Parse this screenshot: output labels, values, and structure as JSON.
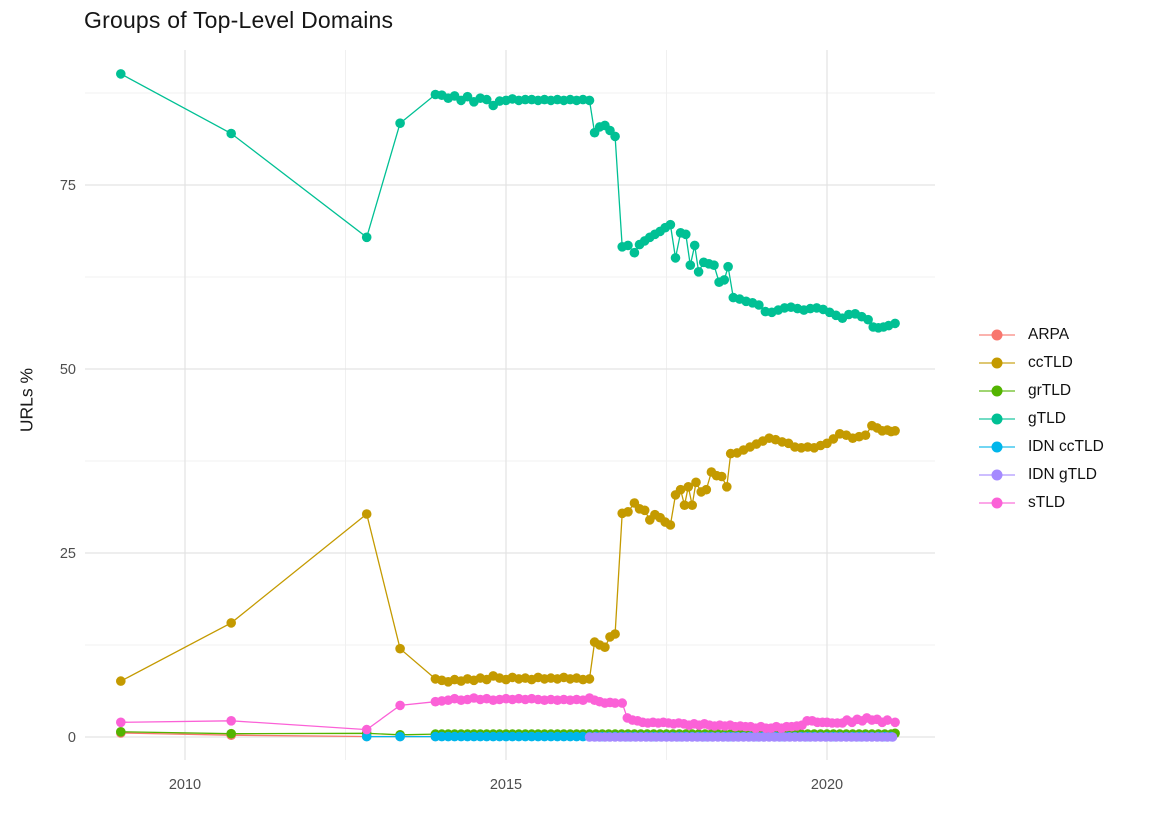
{
  "chart_data": {
    "type": "line",
    "title": "Groups of Top-Level Domains",
    "xlabel": "",
    "ylabel": "URLs %",
    "legend_position": "right",
    "grid": true,
    "background": "#ffffff",
    "grid_major_color": "#e3e3e3",
    "grid_minor_color": "#f0f0f0",
    "tick_label_color": "#4d4d4d",
    "xlim": [
      2008.45,
      2021.68
    ],
    "ylim": [
      -3.1,
      93.4
    ],
    "x_ticks": [
      2010,
      2015,
      2020
    ],
    "x_minor": [
      2012.5,
      2017.5
    ],
    "y_ticks": [
      0,
      25,
      50,
      75
    ],
    "y_minor": [
      12.5,
      37.5,
      62.5,
      87.5
    ],
    "series": [
      {
        "name": "ARPA",
        "color": "#F8766D",
        "points": [
          [
            2009,
            0.55
          ],
          [
            2010.72,
            0.25
          ],
          [
            2012.83,
            0.07
          ],
          [
            2013.35,
            0.07
          ],
          [
            2013.9,
            0.07
          ]
        ],
        "runs": []
      },
      {
        "name": "ccTLD",
        "color": "#C49A00",
        "points": [
          [
            2009,
            7.6
          ],
          [
            2010.72,
            15.5
          ],
          [
            2012.83,
            30.3
          ],
          [
            2013.35,
            12
          ],
          [
            2013.9,
            7.9
          ],
          [
            2014,
            7.7
          ],
          [
            2014.1,
            7.5
          ],
          [
            2014.2,
            7.8
          ],
          [
            2014.3,
            7.6
          ],
          [
            2014.4,
            7.9
          ],
          [
            2014.5,
            7.7
          ],
          [
            2014.6,
            8
          ],
          [
            2014.7,
            7.8
          ],
          [
            2014.8,
            8.3
          ],
          [
            2014.9,
            8
          ],
          [
            2015,
            7.8
          ],
          [
            2015.1,
            8.1
          ],
          [
            2015.2,
            7.9
          ],
          [
            2015.3,
            8
          ],
          [
            2015.4,
            7.8
          ],
          [
            2015.5,
            8.1
          ],
          [
            2015.6,
            7.9
          ],
          [
            2015.7,
            8
          ],
          [
            2015.8,
            7.9
          ],
          [
            2015.9,
            8.1
          ],
          [
            2016,
            7.9
          ],
          [
            2016.1,
            8
          ],
          [
            2016.2,
            7.8
          ],
          [
            2016.3,
            7.9
          ],
          [
            2016.38,
            12.9
          ],
          [
            2016.46,
            12.5
          ],
          [
            2016.54,
            12.2
          ],
          [
            2016.62,
            13.6
          ],
          [
            2016.7,
            14
          ],
          [
            2016.81,
            30.4
          ],
          [
            2016.9,
            30.6
          ],
          [
            2017,
            31.8
          ],
          [
            2017.08,
            31
          ],
          [
            2017.16,
            30.8
          ],
          [
            2017.24,
            29.5
          ],
          [
            2017.32,
            30.2
          ],
          [
            2017.4,
            29.8
          ],
          [
            2017.48,
            29.2
          ],
          [
            2017.56,
            28.8
          ],
          [
            2017.64,
            32.9
          ],
          [
            2017.72,
            33.6
          ],
          [
            2017.78,
            31.5
          ],
          [
            2017.84,
            34
          ],
          [
            2017.9,
            31.5
          ],
          [
            2017.96,
            34.6
          ],
          [
            2018.04,
            33.3
          ],
          [
            2018.12,
            33.6
          ],
          [
            2018.2,
            36
          ],
          [
            2018.28,
            35.5
          ],
          [
            2018.36,
            35.4
          ],
          [
            2018.44,
            34
          ],
          [
            2018.5,
            38.5
          ],
          [
            2018.6,
            38.6
          ],
          [
            2018.7,
            39
          ],
          [
            2018.8,
            39.4
          ],
          [
            2018.9,
            39.8
          ],
          [
            2019,
            40.2
          ],
          [
            2019.1,
            40.6
          ],
          [
            2019.2,
            40.4
          ],
          [
            2019.3,
            40.1
          ],
          [
            2019.4,
            39.9
          ],
          [
            2019.5,
            39.4
          ],
          [
            2019.6,
            39.3
          ],
          [
            2019.7,
            39.4
          ],
          [
            2019.8,
            39.3
          ],
          [
            2019.9,
            39.6
          ],
          [
            2020,
            39.9
          ],
          [
            2020.1,
            40.5
          ],
          [
            2020.2,
            41.2
          ],
          [
            2020.3,
            41
          ],
          [
            2020.4,
            40.6
          ],
          [
            2020.5,
            40.8
          ],
          [
            2020.6,
            41
          ],
          [
            2020.7,
            42.3
          ],
          [
            2020.78,
            42
          ],
          [
            2020.86,
            41.6
          ],
          [
            2020.94,
            41.7
          ],
          [
            2021,
            41.5
          ],
          [
            2021.06,
            41.6
          ]
        ],
        "runs": []
      },
      {
        "name": "grTLD",
        "color": "#53B400",
        "points": [
          [
            2009,
            0.7
          ],
          [
            2010.72,
            0.45
          ],
          [
            2012.83,
            0.5
          ],
          [
            2013.35,
            0.3
          ],
          [
            2013.9,
            0.4
          ],
          [
            2021.06,
            0.5
          ]
        ],
        "runs": [
          [
            2014,
            2021,
            0.1,
            0.4
          ]
        ]
      },
      {
        "name": "gTLD",
        "color": "#00C094",
        "points": [
          [
            2009,
            90.1
          ],
          [
            2010.72,
            82
          ],
          [
            2012.83,
            67.9
          ],
          [
            2013.35,
            83.4
          ],
          [
            2013.9,
            87.3
          ],
          [
            2014,
            87.2
          ],
          [
            2014.1,
            86.8
          ],
          [
            2014.2,
            87.1
          ],
          [
            2014.3,
            86.5
          ],
          [
            2014.4,
            87
          ],
          [
            2014.5,
            86.3
          ],
          [
            2014.6,
            86.8
          ],
          [
            2014.7,
            86.6
          ],
          [
            2014.8,
            85.8
          ],
          [
            2014.9,
            86.4
          ],
          [
            2015,
            86.5
          ],
          [
            2015.1,
            86.7
          ],
          [
            2015.2,
            86.5
          ],
          [
            2015.3,
            86.6
          ],
          [
            2015.4,
            86.6
          ],
          [
            2015.5,
            86.5
          ],
          [
            2015.6,
            86.6
          ],
          [
            2015.7,
            86.5
          ],
          [
            2015.8,
            86.6
          ],
          [
            2015.9,
            86.5
          ],
          [
            2016,
            86.6
          ],
          [
            2016.1,
            86.5
          ],
          [
            2016.2,
            86.6
          ],
          [
            2016.3,
            86.5
          ],
          [
            2016.38,
            82.1
          ],
          [
            2016.46,
            82.9
          ],
          [
            2016.54,
            83.1
          ],
          [
            2016.62,
            82.4
          ],
          [
            2016.7,
            81.6
          ],
          [
            2016.81,
            66.6
          ],
          [
            2016.9,
            66.8
          ],
          [
            2017,
            65.8
          ],
          [
            2017.08,
            66.9
          ],
          [
            2017.16,
            67.4
          ],
          [
            2017.24,
            67.9
          ],
          [
            2017.32,
            68.3
          ],
          [
            2017.4,
            68.7
          ],
          [
            2017.48,
            69.2
          ],
          [
            2017.56,
            69.6
          ],
          [
            2017.64,
            65.1
          ],
          [
            2017.72,
            68.5
          ],
          [
            2017.8,
            68.3
          ],
          [
            2017.87,
            64.1
          ],
          [
            2017.94,
            66.8
          ],
          [
            2018,
            63.2
          ],
          [
            2018.08,
            64.5
          ],
          [
            2018.16,
            64.3
          ],
          [
            2018.24,
            64.1
          ],
          [
            2018.32,
            61.8
          ],
          [
            2018.4,
            62.1
          ],
          [
            2018.46,
            63.9
          ],
          [
            2018.54,
            59.7
          ],
          [
            2018.64,
            59.5
          ],
          [
            2018.74,
            59.2
          ],
          [
            2018.84,
            59
          ],
          [
            2018.94,
            58.7
          ],
          [
            2019.04,
            57.8
          ],
          [
            2019.14,
            57.7
          ],
          [
            2019.24,
            58
          ],
          [
            2019.34,
            58.3
          ],
          [
            2019.44,
            58.4
          ],
          [
            2019.54,
            58.2
          ],
          [
            2019.64,
            58
          ],
          [
            2019.74,
            58.2
          ],
          [
            2019.84,
            58.3
          ],
          [
            2019.94,
            58.1
          ],
          [
            2020.04,
            57.7
          ],
          [
            2020.14,
            57.3
          ],
          [
            2020.24,
            56.9
          ],
          [
            2020.34,
            57.4
          ],
          [
            2020.44,
            57.5
          ],
          [
            2020.54,
            57.1
          ],
          [
            2020.64,
            56.7
          ],
          [
            2020.72,
            55.7
          ],
          [
            2020.8,
            55.6
          ],
          [
            2020.88,
            55.7
          ],
          [
            2020.96,
            55.9
          ],
          [
            2021.06,
            56.2
          ]
        ],
        "runs": []
      },
      {
        "name": "IDN ccTLD",
        "color": "#00B6EB",
        "points": [
          [
            2012.83,
            0.05
          ],
          [
            2013.35,
            0.05
          ],
          [
            2013.9,
            0.05
          ]
        ],
        "runs": [
          [
            2014,
            2021.06,
            0.1,
            0.05
          ]
        ]
      },
      {
        "name": "IDN gTLD",
        "color": "#A58AFF",
        "points": [],
        "runs": [
          [
            2016.3,
            2021.06,
            0.08,
            0
          ]
        ]
      },
      {
        "name": "sTLD",
        "color": "#FB61D7",
        "points": [
          [
            2009,
            2
          ],
          [
            2010.72,
            2.2
          ],
          [
            2012.83,
            1
          ],
          [
            2013.35,
            4.3
          ],
          [
            2013.9,
            4.8
          ],
          [
            2014,
            4.9
          ],
          [
            2014.1,
            5
          ],
          [
            2014.2,
            5.2
          ],
          [
            2014.3,
            5
          ],
          [
            2014.4,
            5.1
          ],
          [
            2014.5,
            5.3
          ],
          [
            2014.6,
            5.1
          ],
          [
            2014.7,
            5.2
          ],
          [
            2014.8,
            5
          ],
          [
            2014.9,
            5.1
          ],
          [
            2015,
            5.2
          ],
          [
            2015.1,
            5.1
          ],
          [
            2015.2,
            5.2
          ],
          [
            2015.3,
            5.1
          ],
          [
            2015.4,
            5.2
          ],
          [
            2015.5,
            5.1
          ],
          [
            2015.6,
            5
          ],
          [
            2015.7,
            5.1
          ],
          [
            2015.8,
            5
          ],
          [
            2015.9,
            5.1
          ],
          [
            2016,
            5
          ],
          [
            2016.1,
            5.1
          ],
          [
            2016.2,
            5
          ],
          [
            2016.3,
            5.3
          ],
          [
            2016.38,
            5
          ],
          [
            2016.46,
            4.8
          ],
          [
            2016.54,
            4.6
          ],
          [
            2016.62,
            4.7
          ],
          [
            2016.7,
            4.6
          ],
          [
            2016.81,
            4.6
          ],
          [
            2016.89,
            2.6
          ],
          [
            2016.97,
            2.3
          ],
          [
            2017.05,
            2.2
          ],
          [
            2017.13,
            2
          ],
          [
            2017.21,
            1.9
          ],
          [
            2017.29,
            2
          ],
          [
            2017.37,
            1.9
          ],
          [
            2017.45,
            2
          ],
          [
            2017.53,
            1.9
          ],
          [
            2017.61,
            1.8
          ],
          [
            2017.69,
            1.9
          ],
          [
            2017.77,
            1.8
          ],
          [
            2017.85,
            1.6
          ],
          [
            2017.93,
            1.8
          ],
          [
            2018.01,
            1.6
          ],
          [
            2018.09,
            1.8
          ],
          [
            2018.17,
            1.6
          ],
          [
            2018.25,
            1.5
          ],
          [
            2018.33,
            1.6
          ],
          [
            2018.41,
            1.5
          ],
          [
            2018.49,
            1.6
          ],
          [
            2018.57,
            1.4
          ],
          [
            2018.65,
            1.5
          ],
          [
            2018.73,
            1.4
          ],
          [
            2018.81,
            1.4
          ],
          [
            2018.89,
            1.2
          ],
          [
            2018.97,
            1.4
          ],
          [
            2019.05,
            1.2
          ],
          [
            2019.13,
            1.2
          ],
          [
            2019.21,
            1.4
          ],
          [
            2019.29,
            1.2
          ],
          [
            2019.37,
            1.4
          ],
          [
            2019.45,
            1.4
          ],
          [
            2019.53,
            1.5
          ],
          [
            2019.61,
            1.6
          ],
          [
            2019.69,
            2.2
          ],
          [
            2019.77,
            2.2
          ],
          [
            2019.85,
            2
          ],
          [
            2019.93,
            2
          ],
          [
            2020,
            2
          ],
          [
            2020.08,
            1.9
          ],
          [
            2020.16,
            1.9
          ],
          [
            2020.24,
            1.9
          ],
          [
            2020.31,
            2.3
          ],
          [
            2020.39,
            2
          ],
          [
            2020.47,
            2.4
          ],
          [
            2020.55,
            2.2
          ],
          [
            2020.62,
            2.6
          ],
          [
            2020.7,
            2.3
          ],
          [
            2020.78,
            2.4
          ],
          [
            2020.86,
            2
          ],
          [
            2020.94,
            2.3
          ],
          [
            2021.06,
            2
          ]
        ],
        "runs": []
      }
    ]
  }
}
